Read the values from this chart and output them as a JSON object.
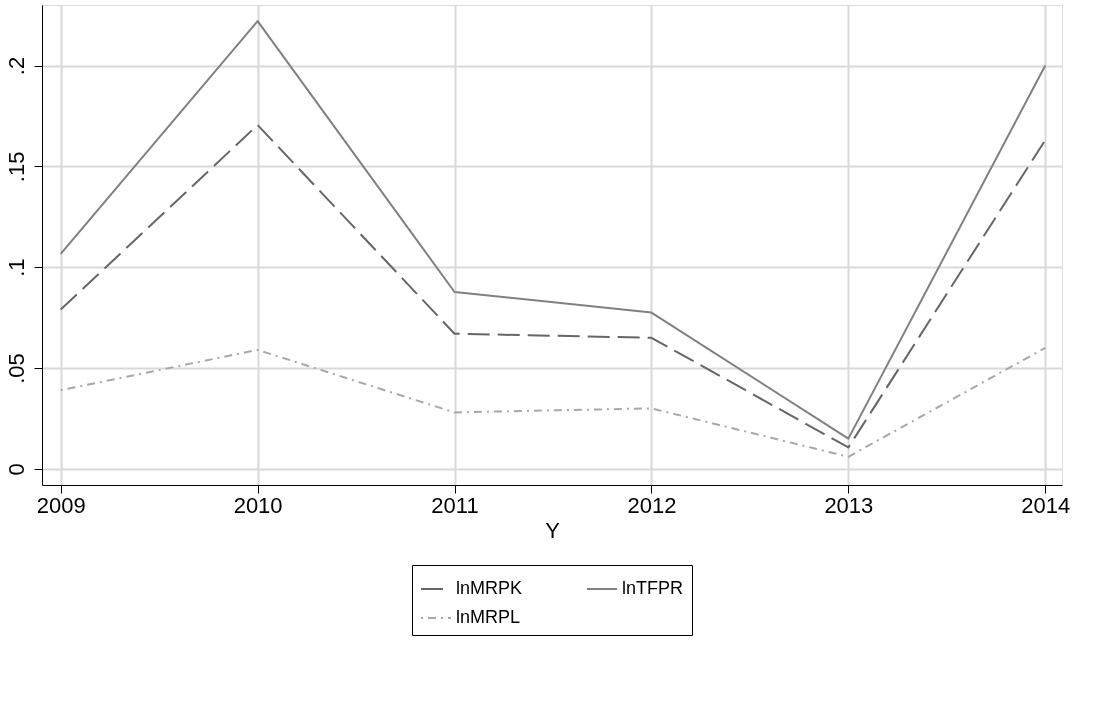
{
  "chart_data": {
    "type": "line",
    "xlabel": "Y",
    "x": [
      2009,
      2010,
      2011,
      2012,
      2013,
      2014
    ],
    "series": [
      {
        "name": "lnMRPK",
        "color": "#666666",
        "line_style": "dashed",
        "values": [
          0.079,
          0.1705,
          0.067,
          0.065,
          0.0106,
          0.163
        ]
      },
      {
        "name": "lnMRPL",
        "color": "#a8a8a8",
        "line_style": "dotted",
        "values": [
          0.039,
          0.059,
          0.028,
          0.03,
          0.006,
          0.06
        ]
      },
      {
        "name": "lnTFPR",
        "color": "#808080",
        "line_style": "solid",
        "values": [
          0.1066,
          0.222,
          0.0877,
          0.0775,
          0.015,
          0.2
        ]
      }
    ],
    "xlim": [
      2008.905,
      2014.085
    ],
    "xticks": [
      2009,
      2010,
      2011,
      2012,
      2013,
      2014
    ],
    "ylim": [
      -0.008,
      0.23
    ],
    "yticks": [
      0,
      {
        "value": 0.05,
        "label": ".05"
      },
      {
        "value": 0.1,
        "label": ".1"
      },
      {
        "value": 0.15,
        "label": ".15"
      },
      {
        "value": 0.2,
        "label": ".2"
      }
    ],
    "grid": true,
    "legend": "bottom",
    "marker": "none"
  }
}
